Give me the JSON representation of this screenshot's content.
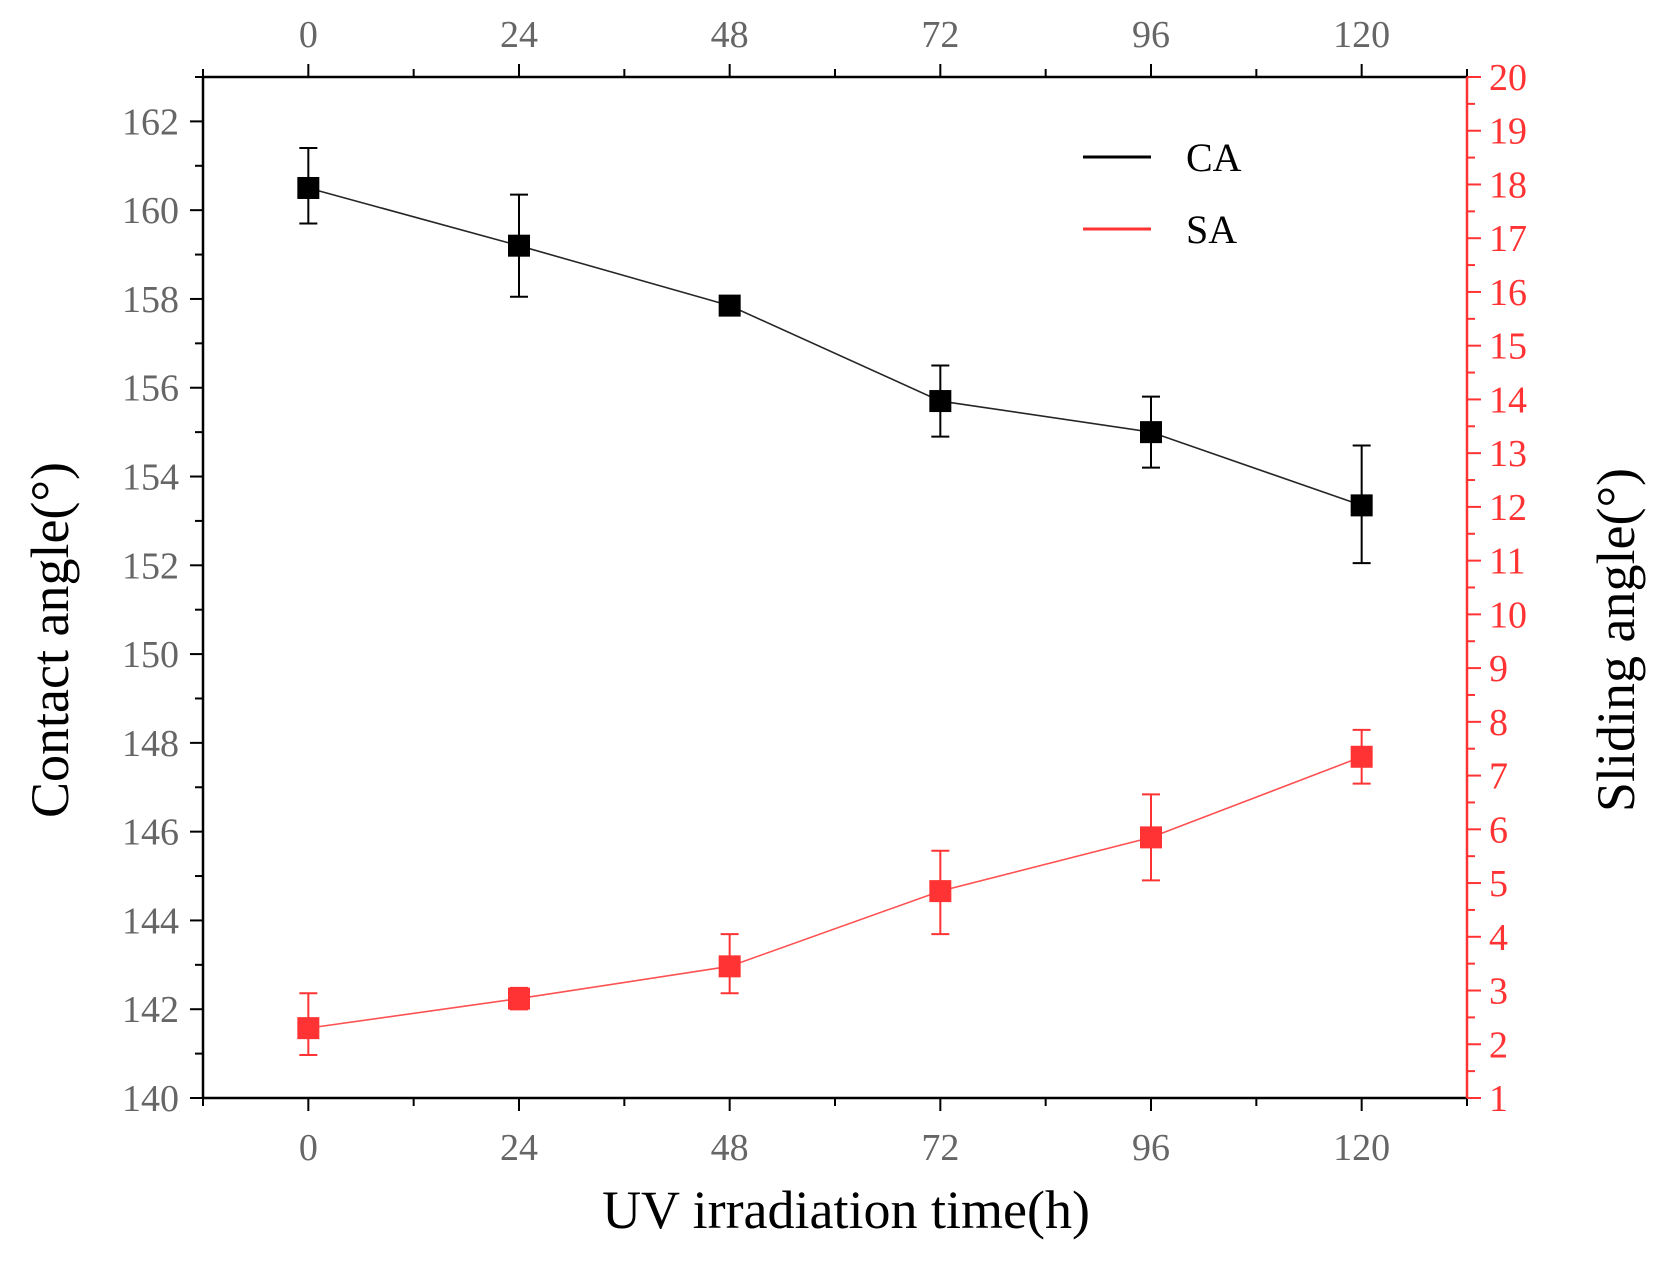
{
  "chart_data": {
    "type": "line",
    "xlabel": "UV irradiation time(h)",
    "ylabel_left": "Contact angle(°)",
    "ylabel_right": "Sliding angle(°)",
    "x_ticks": [
      0,
      24,
      48,
      72,
      96,
      120
    ],
    "x_tick_labels": [
      "0",
      "24",
      "48",
      "72",
      "96",
      "120"
    ],
    "xlim": [
      -12,
      132
    ],
    "y_left_ticks": [
      140,
      142,
      144,
      146,
      148,
      150,
      152,
      154,
      156,
      158,
      160,
      162
    ],
    "y_left_tick_labels": [
      "140",
      "142",
      "144",
      "146",
      "148",
      "150",
      "152",
      "154",
      "156",
      "158",
      "160",
      "162"
    ],
    "ylim_left": [
      140,
      163
    ],
    "y_right_ticks": [
      1,
      2,
      3,
      4,
      5,
      6,
      7,
      8,
      9,
      10,
      11,
      12,
      13,
      14,
      15,
      16,
      17,
      18,
      19,
      20
    ],
    "y_right_tick_labels": [
      "1",
      "2",
      "3",
      "4",
      "5",
      "6",
      "7",
      "8",
      "9",
      "10",
      "11",
      "12",
      "13",
      "14",
      "15",
      "16",
      "17",
      "18",
      "19",
      "20"
    ],
    "ylim_right": [
      1,
      20
    ],
    "grid": false,
    "legend_position": "top-right",
    "colors": {
      "CA": "#000000",
      "SA": "#ff3333",
      "left_tick": "#666666",
      "right_axis": "#ff3333"
    },
    "series": [
      {
        "name": "CA",
        "axis": "left",
        "x": [
          0,
          24,
          48,
          72,
          96,
          120
        ],
        "y": [
          160.5,
          159.2,
          157.85,
          155.7,
          155.0,
          153.35
        ],
        "err_low": [
          159.7,
          158.05,
          157.65,
          154.9,
          154.2,
          152.05
        ],
        "err_high": [
          161.4,
          160.35,
          158.0,
          156.5,
          155.8,
          154.7
        ]
      },
      {
        "name": "SA",
        "axis": "right",
        "x": [
          0,
          24,
          48,
          72,
          96,
          120
        ],
        "y": [
          2.3,
          2.85,
          3.45,
          4.85,
          5.85,
          7.35
        ],
        "err_low": [
          1.8,
          2.65,
          2.95,
          4.05,
          5.05,
          6.85
        ],
        "err_high": [
          2.95,
          3.05,
          4.05,
          5.6,
          6.65,
          7.85
        ]
      }
    ]
  }
}
